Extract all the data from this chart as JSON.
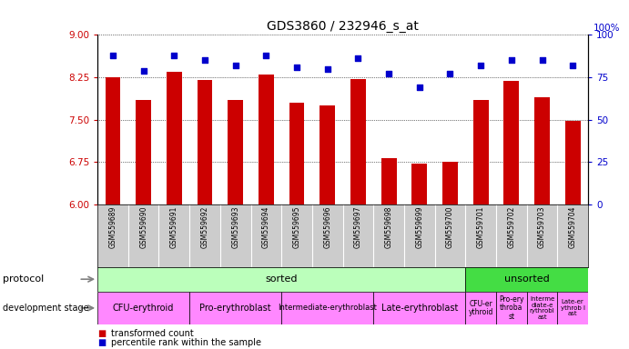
{
  "title": "GDS3860 / 232946_s_at",
  "samples": [
    "GSM559689",
    "GSM559690",
    "GSM559691",
    "GSM559692",
    "GSM559693",
    "GSM559694",
    "GSM559695",
    "GSM559696",
    "GSM559697",
    "GSM559698",
    "GSM559699",
    "GSM559700",
    "GSM559701",
    "GSM559702",
    "GSM559703",
    "GSM559704"
  ],
  "bar_values": [
    8.25,
    7.85,
    8.35,
    8.2,
    7.85,
    8.3,
    7.8,
    7.75,
    8.22,
    6.82,
    6.72,
    6.75,
    7.85,
    8.18,
    7.9,
    7.48
  ],
  "dot_values": [
    88,
    79,
    88,
    85,
    82,
    88,
    81,
    80,
    86,
    77,
    69,
    77,
    82,
    85,
    85,
    82
  ],
  "ylim_left": [
    6,
    9
  ],
  "ylim_right": [
    0,
    100
  ],
  "yticks_left": [
    6,
    6.75,
    7.5,
    8.25,
    9
  ],
  "yticks_right": [
    0,
    25,
    50,
    75,
    100
  ],
  "bar_color": "#cc0000",
  "dot_color": "#0000cc",
  "sorted_color": "#bbffbb",
  "unsorted_color": "#44dd44",
  "dev_stage_color": "#ff88ff",
  "tick_color_left": "#cc0000",
  "tick_color_right": "#0000cc",
  "title_fontsize": 10,
  "sorted_count": 12,
  "unsorted_count": 4,
  "stage_labels": [
    "CFU-erythroid",
    "Pro-erythroblast",
    "Intermediate-erythroblast",
    "Late-erythroblast",
    "CFU-er\nythroid",
    "Pro-ery\nthroba\nst",
    "Interme\ndiate-e\nrythrobl\nast",
    "Late-er\nythrob l\nast"
  ],
  "stage_counts": [
    3,
    3,
    3,
    3,
    1,
    1,
    1,
    1
  ],
  "stage_fontsizes": [
    7,
    7,
    6,
    7,
    5.5,
    5.5,
    5,
    5
  ],
  "legend_bar_label": "transformed count",
  "legend_dot_label": "percentile rank within the sample"
}
